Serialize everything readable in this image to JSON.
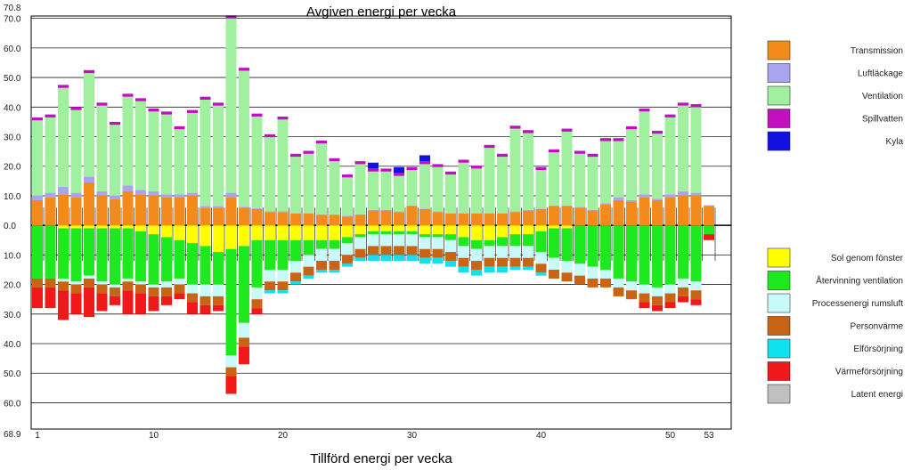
{
  "chart_data": {
    "type": "bar",
    "title": "Avgiven energi per vecka",
    "xlabel": "Tillförd energi per vecka",
    "ylabel": "",
    "ylim": [
      -68.9,
      70.8
    ],
    "ymax_label": "70.8",
    "ymin_label": "68.9",
    "y_ticks": [
      {
        "value": 70,
        "label": "70.0"
      },
      {
        "value": 60,
        "label": "60.0"
      },
      {
        "value": 50,
        "label": "50.0"
      },
      {
        "value": 40,
        "label": "40.0"
      },
      {
        "value": 30,
        "label": "30.0"
      },
      {
        "value": 20,
        "label": "20.0"
      },
      {
        "value": 10,
        "label": "10.0"
      },
      {
        "value": 0,
        "label": "0.0"
      },
      {
        "value": -10,
        "label": "10.0"
      },
      {
        "value": -20,
        "label": "20.0"
      },
      {
        "value": -30,
        "label": "30.0"
      },
      {
        "value": -40,
        "label": "40.0"
      },
      {
        "value": -50,
        "label": "50.0"
      },
      {
        "value": -60,
        "label": "60.0"
      }
    ],
    "x_ticks": [
      {
        "week": 1,
        "label": "1"
      },
      {
        "week": 10,
        "label": "10"
      },
      {
        "week": 20,
        "label": "20"
      },
      {
        "week": 30,
        "label": "30"
      },
      {
        "week": 40,
        "label": "40"
      },
      {
        "week": 50,
        "label": "50"
      },
      {
        "week": 53,
        "label": "53"
      }
    ],
    "grid": true,
    "legend_position": "right",
    "avgiven": {
      "legend_position": "top-right",
      "series": [
        {
          "name": "Transmission",
          "color": "#f28a1c",
          "values": [
            8.5,
            9.5,
            10.5,
            9.5,
            14.5,
            10,
            9,
            11.5,
            10.5,
            10,
            9.5,
            9.5,
            10,
            6,
            6,
            9.5,
            6,
            5.5,
            4.5,
            4.5,
            4,
            4,
            3.5,
            3.5,
            3,
            3.5,
            5,
            5,
            4.5,
            6.5,
            5.5,
            4.5,
            4,
            4,
            4,
            4,
            4,
            4.5,
            5,
            5.5,
            6.5,
            6.5,
            6,
            5,
            7,
            8.5,
            8,
            9.5,
            8.5,
            9.5,
            10,
            10,
            6.5
          ]
        },
        {
          "name": "Luftläckage",
          "color": "#a8a4f0",
          "values": [
            1.5,
            1.5,
            2.5,
            1.5,
            2,
            1.5,
            1,
            2,
            1.5,
            1.5,
            1,
            1,
            1,
            0.5,
            0.5,
            1.5,
            0.3,
            0.3,
            0.3,
            0.3,
            0.2,
            0.2,
            0.2,
            0.2,
            0.2,
            0.2,
            0.2,
            0.2,
            0.2,
            0.2,
            0.2,
            0.2,
            0.2,
            0.2,
            0.2,
            0.2,
            0.2,
            0.2,
            0.2,
            0.2,
            0.2,
            0.2,
            0.2,
            0.2,
            0.5,
            1,
            0.5,
            1,
            0.5,
            1,
            1.5,
            1,
            0.3
          ]
        },
        {
          "name": "Ventilation",
          "color": "#a0f0a0",
          "values": [
            25.5,
            25.5,
            33.5,
            28,
            35,
            29,
            24,
            30,
            30,
            27,
            27,
            22,
            27,
            36,
            34,
            59,
            46,
            31,
            25,
            31,
            19,
            20,
            24,
            18,
            13,
            17,
            13,
            13,
            12,
            12,
            15,
            15,
            13,
            17,
            15,
            22,
            19,
            28,
            26,
            13,
            18,
            25,
            18,
            18,
            21,
            19,
            24,
            28,
            22,
            26,
            29,
            29,
            0
          ]
        },
        {
          "name": "Spillvatten",
          "color": "#c20fc2",
          "values": [
            1,
            1,
            1,
            1,
            1,
            1,
            1,
            1,
            1,
            1,
            1,
            1,
            1,
            1,
            1,
            1,
            1,
            1,
            1,
            1,
            1,
            1,
            1,
            1,
            1,
            1,
            1,
            1,
            1,
            1,
            1,
            1,
            1,
            1,
            1,
            1,
            1,
            1,
            1,
            1,
            1,
            1,
            1,
            1,
            1,
            1,
            1,
            1,
            1,
            1,
            1,
            1,
            0
          ]
        },
        {
          "name": "Kyla",
          "color": "#1212e0",
          "values": [
            0,
            0,
            0,
            0,
            0,
            0,
            0,
            0,
            0,
            0,
            0,
            0,
            0,
            0,
            0,
            0,
            0,
            0,
            0,
            0,
            0,
            0,
            0,
            0,
            0,
            0,
            2,
            0,
            2,
            0,
            2,
            0,
            0,
            0,
            0,
            0,
            0,
            0,
            0,
            0,
            0,
            0,
            0,
            0,
            0,
            0,
            0,
            0,
            0,
            0,
            0,
            0,
            0
          ]
        }
      ]
    },
    "tillford": {
      "legend_position": "bottom-right",
      "series": [
        {
          "name": "Sol genom fönster",
          "color": "#ffff00",
          "values": [
            0,
            0,
            1,
            1,
            1,
            1,
            1,
            1,
            2,
            3,
            4,
            5,
            6,
            7,
            9,
            8,
            7,
            5,
            5,
            5,
            5,
            5,
            5,
            5,
            4,
            3,
            2,
            2,
            2,
            2,
            3,
            3,
            3,
            4,
            5,
            5,
            4,
            3,
            3,
            2,
            1,
            1,
            0,
            0,
            0,
            0,
            0,
            0,
            0,
            0,
            0,
            0,
            0
          ]
        },
        {
          "name": "Återvinning ventilation",
          "color": "#1ee81e",
          "values": [
            18,
            18,
            17,
            18,
            16,
            18,
            19,
            17,
            17,
            17,
            15,
            13,
            14,
            13,
            11,
            36,
            26,
            16,
            10,
            10,
            7,
            5,
            3,
            3,
            2,
            1,
            1,
            1,
            1,
            1,
            1,
            1,
            2,
            3,
            3,
            2,
            3,
            4,
            4,
            7,
            10,
            11,
            13,
            14,
            15,
            18,
            19,
            20,
            21,
            20,
            18,
            19,
            3
          ]
        },
        {
          "name": "Processenergi rumsluft",
          "color": "#c8fafa",
          "values": [
            0,
            0,
            1,
            1,
            1,
            1,
            1,
            1,
            1,
            1,
            2,
            2,
            3,
            4,
            4,
            4,
            5,
            4,
            4,
            4,
            4,
            4,
            4,
            4,
            4,
            4,
            4,
            4,
            4,
            4,
            4,
            4,
            4,
            4,
            4,
            4,
            4,
            4,
            4,
            4,
            4,
            4,
            4,
            4,
            3,
            3,
            3,
            3,
            3,
            3,
            3,
            3,
            0
          ]
        },
        {
          "name": "Personvärme",
          "color": "#c86414",
          "values": [
            3,
            3,
            3,
            3,
            3,
            3,
            3,
            3,
            3,
            3,
            3,
            3,
            3,
            3,
            3,
            3,
            3,
            3,
            3,
            3,
            3,
            3,
            3,
            3,
            3,
            3,
            3,
            3,
            3,
            3,
            3,
            3,
            3,
            3,
            3,
            3,
            3,
            3,
            3,
            3,
            3,
            3,
            3,
            3,
            3,
            3,
            3,
            3,
            3,
            3,
            3,
            3,
            0
          ]
        },
        {
          "name": "Elförsörjning",
          "color": "#10e0f0",
          "values": [
            0,
            0,
            0,
            0,
            0,
            0,
            0,
            0,
            0,
            0,
            0,
            0,
            0,
            0,
            0,
            0,
            0,
            0,
            1,
            1,
            1,
            1,
            1,
            1,
            1,
            1,
            2,
            2,
            2,
            2,
            2,
            2,
            2,
            2,
            2,
            2,
            2,
            1,
            1,
            1,
            0,
            0,
            0,
            0,
            0,
            0,
            0,
            0,
            0,
            0,
            0,
            0,
            0
          ]
        },
        {
          "name": "Värmeförsörjning",
          "color": "#f01818",
          "values": [
            7,
            7,
            10,
            7,
            10,
            6,
            3,
            8,
            7,
            5,
            3,
            2,
            4,
            3,
            2,
            6,
            6,
            2,
            0,
            0,
            0,
            0,
            0,
            0,
            0,
            0,
            0,
            0,
            0,
            0,
            0,
            0,
            0,
            0,
            0,
            0,
            0,
            0,
            0,
            0,
            0,
            0,
            0,
            0,
            0,
            0,
            0,
            2,
            2,
            2,
            2,
            2,
            2
          ]
        },
        {
          "name": "Latent energi",
          "color": "#c0c0c0",
          "values": [
            0,
            0,
            0,
            0,
            0,
            0,
            0,
            0,
            0,
            0,
            0,
            0,
            0,
            0,
            0,
            0,
            0,
            0,
            0,
            0,
            0,
            0,
            0,
            0,
            0,
            0,
            0,
            0,
            0,
            0,
            0,
            0,
            0,
            0,
            0,
            0,
            0,
            0,
            0,
            0,
            0,
            0,
            0,
            0,
            0,
            0,
            0,
            0,
            0,
            0,
            0,
            0,
            0
          ]
        }
      ]
    }
  }
}
